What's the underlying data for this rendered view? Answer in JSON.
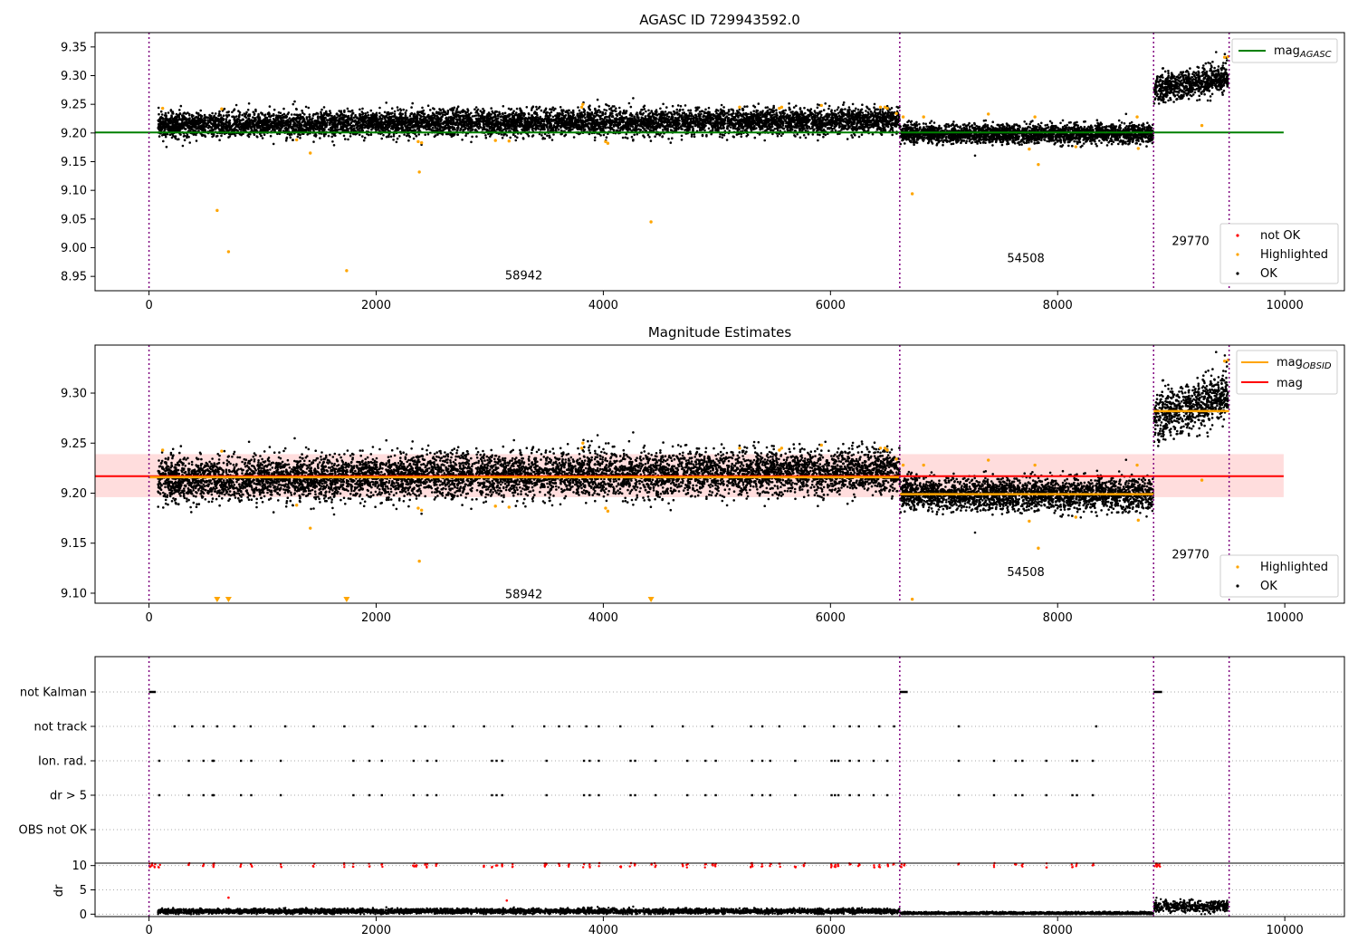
{
  "chart_data": [
    {
      "type": "scatter",
      "title": "AGASC ID 729943592.0",
      "xlabel": "",
      "ylabel": "",
      "xlim": [
        -475,
        10525
      ],
      "ylim": [
        8.925,
        9.375
      ],
      "x_ticks": [
        0,
        2000,
        4000,
        6000,
        8000,
        10000
      ],
      "y_ticks": [
        8.95,
        9.0,
        9.05,
        9.1,
        9.15,
        9.2,
        9.25,
        9.3,
        9.35
      ],
      "grid": false,
      "obs_boundaries": [
        0,
        6610,
        8845,
        9510
      ],
      "obs_labels": [
        {
          "text": "58942",
          "x": 3300,
          "y": 8.945
        },
        {
          "text": "54508",
          "x": 7720,
          "y": 8.975
        },
        {
          "text": "29770",
          "x": 9170,
          "y": 9.005
        }
      ],
      "reference_lines": [
        {
          "name": "mag_AGASC",
          "y": 9.201,
          "x": [
            -475,
            9990
          ],
          "color": "#008000"
        }
      ],
      "segments": [
        {
          "x": [
            80,
            6610
          ],
          "center": 9.218,
          "spread": 0.011,
          "drift": 0.004
        },
        {
          "x": [
            6615,
            8840
          ],
          "center": 9.199,
          "spread": 0.008,
          "drift": 0.0
        },
        {
          "x": [
            8850,
            9500
          ],
          "center": 9.287,
          "spread": 0.012,
          "drift": 0.012
        }
      ],
      "highlighted_points": {
        "x": [
          600,
          700,
          1420,
          1740,
          2380,
          4420,
          6720,
          7830,
          9270,
          1300,
          2370,
          2400,
          3050,
          3170,
          3810,
          3820,
          4020,
          4040,
          5200,
          5550,
          5570,
          5920,
          6440,
          6480,
          6500,
          6580,
          6640,
          6820,
          7390,
          7750,
          7800,
          8160,
          8700,
          8710,
          9470,
          9500,
          120,
          640
        ],
        "y": [
          9.065,
          8.993,
          9.165,
          8.96,
          9.132,
          9.045,
          9.094,
          9.145,
          9.213,
          9.188,
          9.185,
          9.183,
          9.187,
          9.186,
          9.245,
          9.25,
          9.185,
          9.182,
          9.245,
          9.243,
          9.245,
          9.248,
          9.245,
          9.245,
          9.243,
          9.234,
          9.228,
          9.228,
          9.233,
          9.172,
          9.228,
          9.176,
          9.228,
          9.173,
          9.332,
          9.333,
          9.243,
          9.242
        ]
      },
      "legend_lines": [
        {
          "label": "mag",
          "sub": "AGASC",
          "color": "#008000"
        }
      ],
      "legend_markers": [
        {
          "label": "not OK",
          "color": "#ff0000"
        },
        {
          "label": "Highlighted",
          "color": "#ffa500"
        },
        {
          "label": "OK",
          "color": "#000000"
        }
      ],
      "legend_placement": [
        "top-right",
        "bottom-right"
      ]
    },
    {
      "type": "scatter",
      "title": "Magnitude Estimates",
      "xlabel": "",
      "ylabel": "",
      "xlim": [
        -475,
        10525
      ],
      "ylim": [
        9.09,
        9.348
      ],
      "x_ticks": [
        0,
        2000,
        4000,
        6000,
        8000,
        10000
      ],
      "y_ticks": [
        9.1,
        9.15,
        9.2,
        9.25,
        9.3
      ],
      "grid": false,
      "obs_boundaries": [
        0,
        6610,
        8845,
        9510
      ],
      "obs_labels": [
        {
          "text": "58942",
          "x": 3300,
          "y": 9.095
        },
        {
          "text": "54508",
          "x": 7720,
          "y": 9.117
        },
        {
          "text": "29770",
          "x": 9170,
          "y": 9.135
        }
      ],
      "band": {
        "x": [
          -475,
          9990
        ],
        "y": [
          9.196,
          9.239
        ],
        "color": "#ffdddd"
      },
      "mag_line": {
        "name": "mag",
        "y": 9.217,
        "x": [
          -475,
          9990
        ],
        "color": "#ff0000"
      },
      "obsid_lines": [
        {
          "x": [
            0,
            6610
          ],
          "y": 9.216
        },
        {
          "x": [
            6610,
            8845
          ],
          "y": 9.199
        },
        {
          "x": [
            8845,
            9510
          ],
          "y": 9.282
        }
      ],
      "segments": [
        {
          "x": [
            80,
            6610
          ],
          "center": 9.218,
          "spread": 0.011,
          "drift": 0.004
        },
        {
          "x": [
            6615,
            8840
          ],
          "center": 9.199,
          "spread": 0.008,
          "drift": 0.0
        },
        {
          "x": [
            8850,
            9500
          ],
          "center": 9.287,
          "spread": 0.012,
          "drift": 0.012
        }
      ],
      "highlighted_points": {
        "x": [
          1420,
          2380,
          6720,
          7830,
          9270,
          1300,
          2370,
          2400,
          3050,
          3170,
          3810,
          3820,
          4020,
          4040,
          5200,
          5550,
          5570,
          5920,
          6440,
          6480,
          6500,
          6580,
          6640,
          6820,
          7390,
          7750,
          7800,
          8160,
          8700,
          8710,
          9470,
          9500,
          120,
          640
        ],
        "y": [
          9.165,
          9.132,
          9.094,
          9.145,
          9.213,
          9.188,
          9.185,
          9.183,
          9.187,
          9.186,
          9.245,
          9.25,
          9.185,
          9.182,
          9.245,
          9.243,
          9.245,
          9.248,
          9.245,
          9.245,
          9.243,
          9.234,
          9.228,
          9.228,
          9.233,
          9.172,
          9.228,
          9.176,
          9.228,
          9.173,
          9.332,
          9.333,
          9.243,
          9.242
        ]
      },
      "offscale_points_x": [
        600,
        700,
        1740,
        4420
      ],
      "legend_lines": [
        {
          "label": "mag",
          "sub": "OBSID",
          "color": "#ffa500"
        },
        {
          "label": "mag",
          "sub": "",
          "color": "#ff0000"
        }
      ],
      "legend_markers": [
        {
          "label": "Highlighted",
          "color": "#ffa500"
        },
        {
          "label": "OK",
          "color": "#000000"
        }
      ],
      "legend_placement": [
        "top-right",
        "bottom-right"
      ]
    },
    {
      "type": "scatter",
      "title": "",
      "xlabel": "",
      "ylabel": "",
      "xlim": [
        -475,
        10525
      ],
      "x_ticks": [
        0,
        2000,
        4000,
        6000,
        8000,
        10000
      ],
      "obs_boundaries": [
        0,
        6610,
        8845,
        9510
      ],
      "flag_rows": [
        "not Kalman",
        "not track",
        "Ion. rad.",
        "dr > 5",
        "OBS not OK"
      ],
      "flags": {
        "not Kalman": [
          [
            0,
            60
          ],
          [
            6610,
            6680
          ],
          [
            8845,
            8920
          ]
        ],
        "not track": [
          225,
          380,
          480,
          600,
          750,
          895,
          1200,
          1450,
          1720,
          1970,
          2350,
          2430,
          2680,
          2950,
          3200,
          3480,
          3610,
          3700,
          3850,
          3960,
          4150,
          4430,
          4700,
          4960,
          5300,
          5400,
          5550,
          5770,
          6030,
          6170,
          6250,
          6430,
          6560,
          7130,
          8340
        ],
        "Ion. rad.": [
          90,
          350,
          480,
          560,
          570,
          810,
          900,
          1160,
          1800,
          1940,
          2050,
          2330,
          2450,
          2530,
          3020,
          3060,
          3110,
          3500,
          3830,
          3880,
          3960,
          4240,
          4280,
          4460,
          4740,
          4900,
          4990,
          5310,
          5400,
          5470,
          5690,
          6010,
          6040,
          6070,
          6170,
          6250,
          6380,
          6500,
          7130,
          7440,
          7630,
          7690,
          7900,
          8130,
          8170,
          8310
        ],
        "dr > 5": [
          90,
          350,
          480,
          560,
          570,
          810,
          900,
          1160,
          1800,
          1940,
          2050,
          2330,
          2450,
          2530,
          3020,
          3060,
          3110,
          3500,
          3830,
          3880,
          3960,
          4240,
          4280,
          4460,
          4740,
          4900,
          4990,
          5310,
          5400,
          5470,
          5690,
          6010,
          6040,
          6070,
          6170,
          6250,
          6380,
          6500,
          7130,
          7440,
          7630,
          7690,
          7900,
          8130,
          8170,
          8310
        ],
        "OBS not OK": []
      },
      "dr": {
        "ylabel": "dr",
        "ylim": [
          -0.5,
          10.5
        ],
        "y_ticks": [
          0,
          5,
          10
        ],
        "segments": [
          {
            "x": [
              80,
              6610
            ],
            "center": 0.6,
            "spread": 0.25
          },
          {
            "x": [
              6615,
              8840
            ],
            "center": 0.2,
            "spread": 0.12
          },
          {
            "x": [
              8850,
              9500
            ],
            "center": 1.6,
            "spread": 0.6
          }
        ],
        "red_points_x": [
          10,
          30,
          50,
          90,
          350,
          480,
          560,
          570,
          810,
          900,
          1160,
          1450,
          1720,
          1800,
          1940,
          2050,
          2330,
          2350,
          2430,
          2450,
          2530,
          2950,
          3020,
          3060,
          3110,
          3200,
          3480,
          3500,
          3610,
          3700,
          3830,
          3880,
          3960,
          4150,
          4240,
          4280,
          4430,
          4460,
          4700,
          4740,
          4900,
          4960,
          4990,
          5300,
          5310,
          5400,
          5470,
          5550,
          5690,
          5770,
          6010,
          6040,
          6070,
          6170,
          6250,
          6380,
          6430,
          6500,
          6560,
          6620,
          6650,
          7130,
          7440,
          7630,
          7690,
          7900,
          8130,
          8170,
          8310,
          8860,
          8880,
          8900
        ],
        "stray_red_points": {
          "x": [
            700,
            3150
          ],
          "y": [
            3.4,
            2.8
          ]
        }
      }
    }
  ]
}
